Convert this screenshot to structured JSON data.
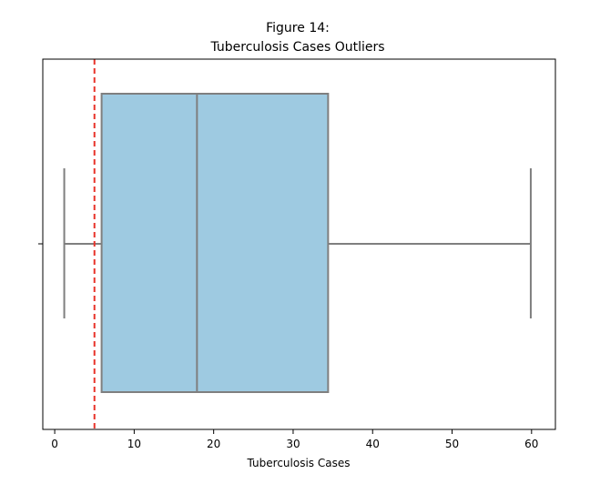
{
  "chart_data": {
    "type": "box",
    "title_line1": "Figure 14:",
    "title_line2": "Tuberculosis Cases Outliers",
    "xlabel": "Tuberculosis Cases",
    "xlim": [
      -1.5,
      63
    ],
    "xticks": [
      0,
      10,
      20,
      30,
      40,
      50,
      60
    ],
    "box": {
      "whisker_low": 1.2,
      "q1": 5.9,
      "median": 17.9,
      "q3": 34.4,
      "whisker_high": 59.9,
      "fill": "#9ecae1",
      "line": "#7f7f7f"
    },
    "reference_line": {
      "value": 5,
      "style": "dashed",
      "color": "#e8332a"
    }
  }
}
